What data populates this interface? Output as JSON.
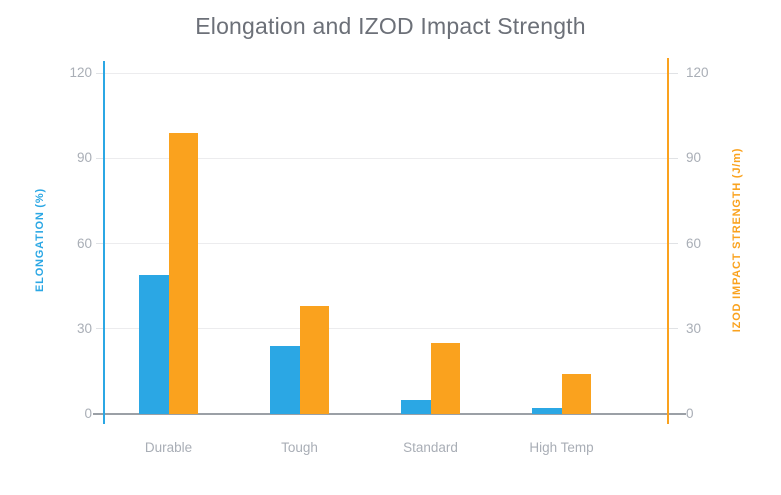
{
  "title": "Elongation and IZOD Impact Strength",
  "chart_data": {
    "type": "bar",
    "categories": [
      "Durable",
      "Tough",
      "Standard",
      "High Temp"
    ],
    "series": [
      {
        "name": "Elongation (%)",
        "axis": "left",
        "color": "#2ba7e4",
        "values": [
          49,
          24,
          5,
          2
        ]
      },
      {
        "name": "IZOD Impact Strength (J/m)",
        "axis": "right",
        "color": "#faa21e",
        "values": [
          99,
          38,
          25,
          14
        ]
      }
    ],
    "left_axis": {
      "label": "ELONGATION (%)",
      "ticks": [
        0,
        30,
        60,
        90,
        120
      ],
      "range": [
        0,
        120
      ],
      "color": "#2ba7e4"
    },
    "right_axis": {
      "label": "IZOD IMPACT STRENGTH (J/m)",
      "ticks": [
        0,
        30,
        60,
        90,
        120
      ],
      "range": [
        0,
        120
      ],
      "color": "#faa21e"
    },
    "grid": true,
    "legend": "none",
    "title": "Elongation and IZOD Impact Strength",
    "text_colors": {
      "title": "#6c7078",
      "tick_labels": "#a9aeb6"
    }
  }
}
